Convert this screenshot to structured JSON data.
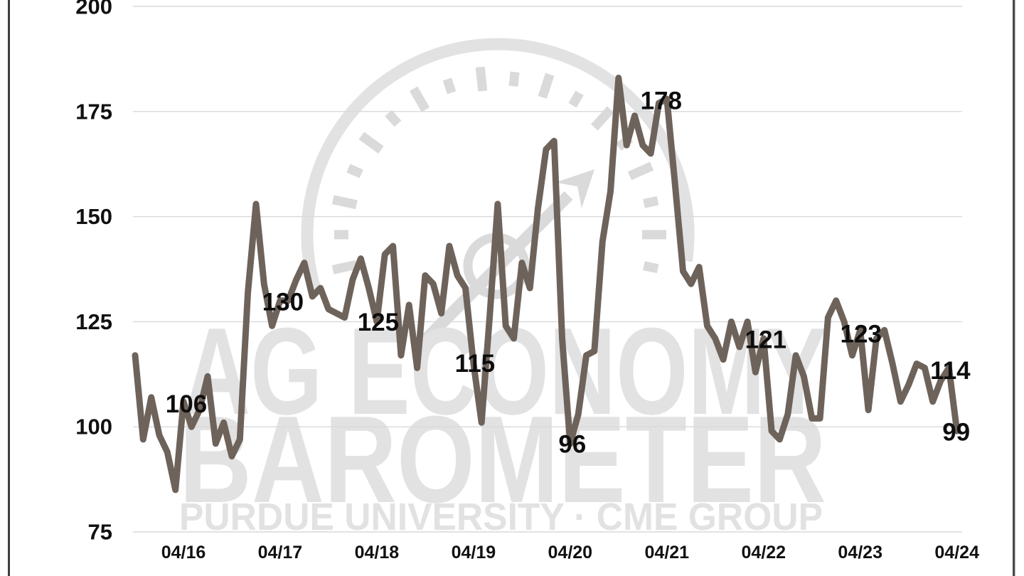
{
  "chart_data": {
    "type": "line",
    "title": "Ag Economy Barometer",
    "watermark": {
      "line1": "AG ECONOMY",
      "line2": "BAROMETER",
      "line3": "PURDUE UNIVERSITY   ·   CME GROUP",
      "gauge_icon": "barometer-gauge-icon"
    },
    "x_monthly_start": "2015-10",
    "x_monthly_end": "2024-04",
    "x_tick_labels": [
      "04/16",
      "04/17",
      "04/18",
      "04/19",
      "04/20",
      "04/21",
      "04/22",
      "04/23",
      "04/24"
    ],
    "y_tick_values": [
      200,
      175,
      150,
      125,
      100,
      75
    ],
    "ylim": [
      75,
      200
    ],
    "grid": true,
    "legend": false,
    "values": [
      117,
      97,
      107,
      98,
      94,
      85,
      106,
      100,
      104,
      112,
      96,
      101,
      93,
      97,
      132,
      153,
      134,
      124,
      130,
      130,
      135,
      139,
      131,
      133,
      128,
      127,
      126,
      135,
      140,
      133,
      125,
      141,
      143,
      117,
      129,
      114,
      136,
      134,
      127,
      143,
      136,
      133,
      115,
      101,
      126,
      153,
      124,
      121,
      139,
      133,
      152,
      166,
      168,
      121,
      96,
      103,
      117,
      118,
      144,
      156,
      183,
      167,
      174,
      167,
      165,
      177,
      178,
      158,
      137,
      134,
      138,
      124,
      121,
      116,
      125,
      119,
      125,
      113,
      121,
      99,
      97,
      103,
      117,
      112,
      102,
      102,
      126,
      130,
      125,
      117,
      123,
      104,
      121,
      123,
      115,
      106,
      110,
      115,
      114,
      106,
      111,
      114,
      99
    ],
    "annotations": [
      {
        "text": "106",
        "index": 6,
        "value": 106
      },
      {
        "text": "130",
        "index": 18,
        "value": 130
      },
      {
        "text": "125",
        "index": 30,
        "value": 125
      },
      {
        "text": "115",
        "index": 42,
        "value": 115
      },
      {
        "text": "96",
        "index": 54,
        "value": 96
      },
      {
        "text": "178",
        "index": 66,
        "value": 178
      },
      {
        "text": "121",
        "index": 78,
        "value": 121
      },
      {
        "text": "123",
        "index": 90,
        "value": 123
      },
      {
        "text": "114",
        "index": 101,
        "value": 114
      },
      {
        "text": "99",
        "index": 102,
        "value": 99
      }
    ],
    "colors": {
      "line": "#6e635b",
      "grid": "#d9d9d9",
      "watermark": "#e2e2e2",
      "watermark_ticks": "#dadada",
      "annotation": "#0d0d0d",
      "axis_text": "#111111",
      "border": "#3f3f3f",
      "background": "#ffffff"
    }
  }
}
